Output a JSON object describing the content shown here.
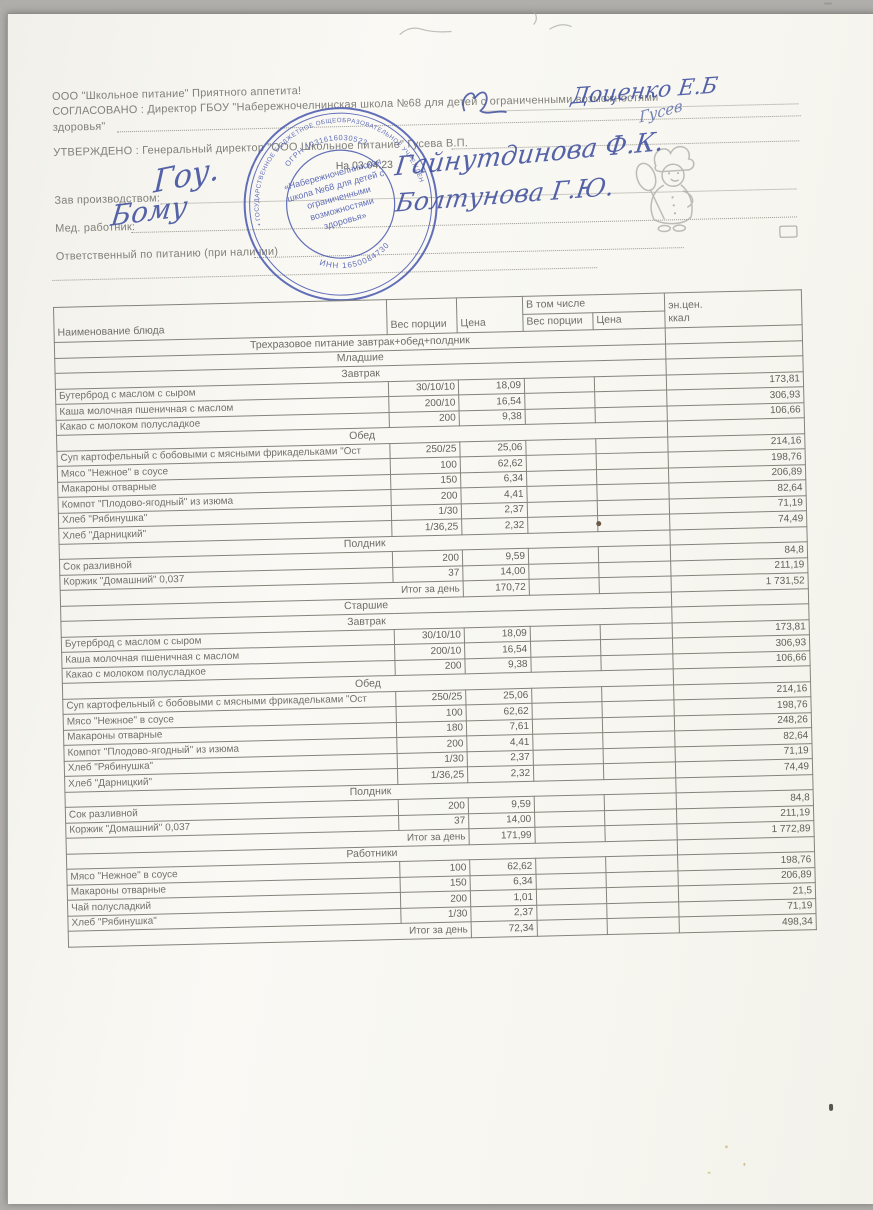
{
  "colors": {
    "ink_blue": "#3e4e9e",
    "stamp_blue": "#4050ac",
    "paper": "#faf9f4",
    "print_gray": "#81817a"
  },
  "header": {
    "line1": "ООО \"Школьное питание\" Приятного аппетита!",
    "line2": "СОГЛАСОВАНО : Директор ГБОУ \"Набережночелнинская школа №68 для детей с ограниченными возможностями",
    "line3": "здоровья\"",
    "line4": "УТВЕРЖДЕНО : Генеральный директор \"ООО Школьное питание\" Гусева В.П.",
    "date_line": "На 03.04.23",
    "fields": [
      {
        "label": "Зав производством:"
      },
      {
        "label": "Мед. работник:"
      },
      {
        "label": "Ответственный по питанию (при наличии)"
      }
    ],
    "signatures": {
      "approved_name": "Доценко Е.Б",
      "director_sig": "Гусев",
      "zav_sig": "Гоу.",
      "zav_name": "Гайнутдинова Ф.К.",
      "med_sig": "Бому",
      "med_name": "Болтунова Г.Ю."
    }
  },
  "stamp": {
    "ring_text": "• РТ • ГОСУДАРСТВЕННОЕ БЮДЖЕТНОЕ ОБЩЕОБРАЗОВАТЕЛЬНОЕ УЧРЕЖДЕНИЕ •",
    "ogrn": "ОГРН 1031616030523",
    "inn": "ИНН 1650084730",
    "center_lines": [
      "«Набережночелнинская",
      "школа №68 для детей с",
      "ограниченными",
      "возможностями",
      "здоровья»"
    ]
  },
  "table": {
    "columns": {
      "name": "Наименование блюда",
      "weight": "Вес порции",
      "price": "Цена",
      "including": "В том числе",
      "weight2": "Вес порции",
      "price2": "Цена",
      "energy": "эн.цен.",
      "energy2": "ккал"
    },
    "rows": [
      {
        "k": "s",
        "label": "Трехразовое питание завтрак+обед+полдник"
      },
      {
        "k": "s",
        "label": "Младшие"
      },
      {
        "k": "s",
        "label": "Завтрак"
      },
      {
        "k": "d",
        "label": "Бутерброд с маслом с сыром",
        "w": "30/10/10",
        "p": "18,09",
        "e": "173,81"
      },
      {
        "k": "d",
        "label": "Каша молочная пшеничная с маслом",
        "w": "200/10",
        "p": "16,54",
        "e": "306,93"
      },
      {
        "k": "d",
        "label": "Какао с молоком полусладкое",
        "w": "200",
        "p": "9,38",
        "e": "106,66"
      },
      {
        "k": "s",
        "label": "Обед"
      },
      {
        "k": "d",
        "label": "Суп картофельный с бобовыми с мясными фрикадельками \"Ост",
        "w": "250/25",
        "p": "25,06",
        "e": "214,16"
      },
      {
        "k": "d",
        "label": "Мясо \"Нежное\" в соусе",
        "w": "100",
        "p": "62,62",
        "e": "198,76"
      },
      {
        "k": "d",
        "label": "Макароны отварные",
        "w": "150",
        "p": "6,34",
        "e": "206,89"
      },
      {
        "k": "d",
        "label": "Компот \"Плодово-ягодный\" из изюма",
        "w": "200",
        "p": "4,41",
        "e": "82,64"
      },
      {
        "k": "d",
        "label": "Хлеб \"Рябинушка\"",
        "w": "1/30",
        "p": "2,37",
        "e": "71,19"
      },
      {
        "k": "d",
        "label": "Хлеб \"Дарницкий\"",
        "w": "1/36,25",
        "p": "2,32",
        "e": "74,49"
      },
      {
        "k": "s",
        "label": "Полдник"
      },
      {
        "k": "d",
        "label": "Сок разливной",
        "w": "200",
        "p": "9,59",
        "e": "84,8"
      },
      {
        "k": "d",
        "label": "Коржик \"Домашний\" 0,037",
        "w": "37",
        "p": "14,00",
        "e": "211,19"
      },
      {
        "k": "t",
        "label": "Итог за день",
        "p": "170,72",
        "e": "1 731,52"
      },
      {
        "k": "s",
        "label": "Старшие"
      },
      {
        "k": "s",
        "label": "Завтрак"
      },
      {
        "k": "d",
        "label": "Бутерброд с маслом с сыром",
        "w": "30/10/10",
        "p": "18,09",
        "e": "173,81"
      },
      {
        "k": "d",
        "label": "Каша молочная пшеничная с маслом",
        "w": "200/10",
        "p": "16,54",
        "e": "306,93"
      },
      {
        "k": "d",
        "label": "Какао с молоком полусладкое",
        "w": "200",
        "p": "9,38",
        "e": "106,66"
      },
      {
        "k": "s",
        "label": "Обед"
      },
      {
        "k": "d",
        "label": "Суп картофельный с бобовыми с мясными фрикадельками \"Ост",
        "w": "250/25",
        "p": "25,06",
        "e": "214,16"
      },
      {
        "k": "d",
        "label": "Мясо \"Нежное\" в соусе",
        "w": "100",
        "p": "62,62",
        "e": "198,76"
      },
      {
        "k": "d",
        "label": "Макароны отварные",
        "w": "180",
        "p": "7,61",
        "e": "248,26"
      },
      {
        "k": "d",
        "label": "Компот \"Плодово-ягодный\" из изюма",
        "w": "200",
        "p": "4,41",
        "e": "82,64"
      },
      {
        "k": "d",
        "label": "Хлеб \"Рябинушка\"",
        "w": "1/30",
        "p": "2,37",
        "e": "71,19"
      },
      {
        "k": "d",
        "label": "Хлеб \"Дарницкий\"",
        "w": "1/36,25",
        "p": "2,32",
        "e": "74,49"
      },
      {
        "k": "s",
        "label": "Полдник"
      },
      {
        "k": "d",
        "label": "Сок разливной",
        "w": "200",
        "p": "9,59",
        "e": "84,8"
      },
      {
        "k": "d",
        "label": "Коржик \"Домашний\" 0,037",
        "w": "37",
        "p": "14,00",
        "e": "211,19"
      },
      {
        "k": "t",
        "label": "Итог за день",
        "p": "171,99",
        "e": "1 772,89"
      },
      {
        "k": "s",
        "label": "Работники"
      },
      {
        "k": "d",
        "label": "Мясо \"Нежное\" в соусе",
        "w": "100",
        "p": "62,62",
        "e": "198,76"
      },
      {
        "k": "d",
        "label": "Макароны отварные",
        "w": "150",
        "p": "6,34",
        "e": "206,89"
      },
      {
        "k": "d",
        "label": "Чай полусладкий",
        "w": "200",
        "p": "1,01",
        "e": "21,5"
      },
      {
        "k": "d",
        "label": "Хлеб \"Рябинушка\"",
        "w": "1/30",
        "p": "2,37",
        "e": "71,19"
      },
      {
        "k": "t",
        "label": "Итог за день",
        "p": "72,34",
        "e": "498,34"
      }
    ]
  }
}
